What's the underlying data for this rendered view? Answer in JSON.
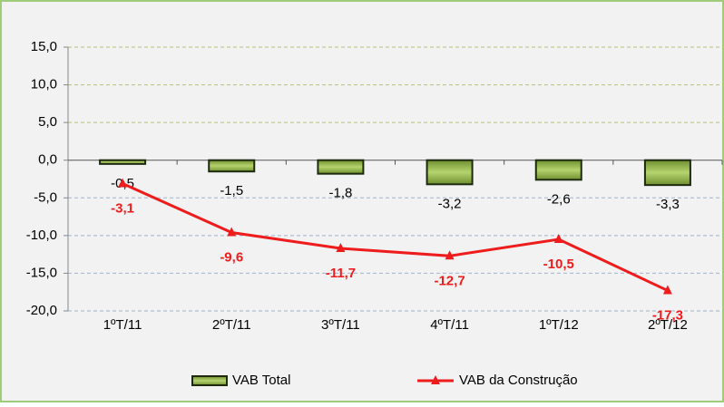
{
  "chart_data": {
    "type": "bar",
    "categories": [
      "1ºT/11",
      "2ºT/11",
      "3ºT/11",
      "4ºT/11",
      "1ºT/12",
      "2ºT/12"
    ],
    "series": [
      {
        "name": "VAB Total",
        "type": "bar",
        "color": "#8fb04a",
        "values": [
          -0.5,
          -1.5,
          -1.8,
          -3.2,
          -2.6,
          -3.3
        ],
        "value_labels": [
          "-0,5",
          "-1,5",
          "-1,8",
          "-3,2",
          "-2,6",
          "-3,3"
        ]
      },
      {
        "name": "VAB da Construção",
        "type": "line",
        "color": "#ee1c1c",
        "values": [
          -3.1,
          -9.6,
          -11.7,
          -12.7,
          -10.5,
          -17.3
        ],
        "value_labels": [
          "-3,1",
          "-9,6",
          "-11,7",
          "-12,7",
          "-10,5",
          "-17,3"
        ]
      }
    ],
    "ylim": [
      -20,
      15
    ],
    "yticks": [
      {
        "value": -20,
        "label": "-20,0"
      },
      {
        "value": -15,
        "label": "-15,0"
      },
      {
        "value": -10,
        "label": "-10,0"
      },
      {
        "value": -5,
        "label": "-5,0"
      },
      {
        "value": 0,
        "label": "0,0"
      },
      {
        "value": 5,
        "label": "5,0"
      },
      {
        "value": 10,
        "label": "10,0"
      },
      {
        "value": 15,
        "label": "15,0"
      }
    ],
    "grid": true,
    "legend": "bottom"
  }
}
